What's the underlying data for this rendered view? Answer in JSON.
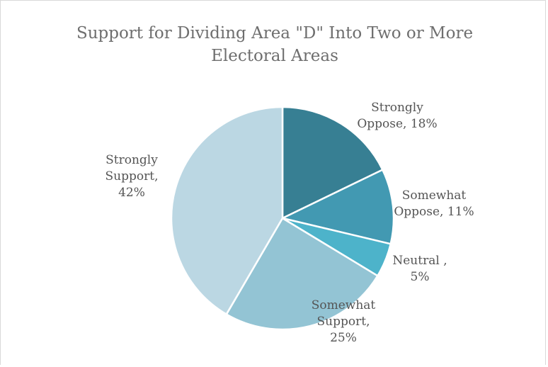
{
  "chart_data": {
    "type": "pie",
    "title_lines": [
      "Support for Dividing Area \"D\" Into Two or More",
      "Electoral Areas"
    ],
    "slices": [
      {
        "label_lines": [
          "Strongly",
          "Oppose, 18%"
        ],
        "value": 18,
        "color": "#377f93"
      },
      {
        "label_lines": [
          "Somewhat",
          "Oppose, 11%"
        ],
        "value": 11,
        "color": "#4299b2"
      },
      {
        "label_lines": [
          "Neutral    ,",
          "5%"
        ],
        "value": 5,
        "color": "#4db3ca"
      },
      {
        "label_lines": [
          "Somewhat",
          "Support,",
          "25%"
        ],
        "value": 25,
        "color": "#93c4d4"
      },
      {
        "label_lines": [
          "Strongly",
          "Support,",
          "42%"
        ],
        "value": 42,
        "color": "#bbd7e3"
      }
    ],
    "start_angle_deg": 0,
    "direction": "clockwise",
    "legend": "none"
  }
}
